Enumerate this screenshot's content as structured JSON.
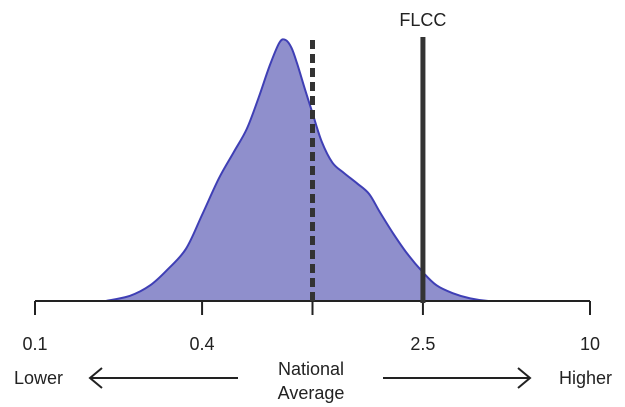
{
  "chart_data": {
    "type": "area",
    "scale": "log",
    "xlim": [
      0.1,
      10
    ],
    "ylim": [
      0,
      1
    ],
    "ticks": [
      {
        "value": 0.1,
        "label": "0.1"
      },
      {
        "value": 0.4,
        "label": "0.4"
      },
      {
        "value": 1.0,
        "label": ""
      },
      {
        "value": 2.5,
        "label": "2.5"
      },
      {
        "value": 10,
        "label": "10"
      }
    ],
    "density": {
      "x": [
        0.18,
        0.22,
        0.26,
        0.3,
        0.35,
        0.4,
        0.46,
        0.52,
        0.58,
        0.64,
        0.7,
        0.76,
        0.8,
        0.84,
        0.88,
        0.94,
        1.0,
        1.08,
        1.18,
        1.3,
        1.45,
        1.6,
        1.75,
        1.95,
        2.2,
        2.5,
        2.8,
        3.2,
        3.7,
        4.3,
        5.0
      ],
      "y": [
        0.0,
        0.02,
        0.06,
        0.12,
        0.2,
        0.33,
        0.47,
        0.57,
        0.66,
        0.78,
        0.9,
        0.99,
        1.0,
        0.97,
        0.91,
        0.81,
        0.72,
        0.61,
        0.53,
        0.49,
        0.45,
        0.41,
        0.34,
        0.26,
        0.18,
        0.11,
        0.06,
        0.03,
        0.01,
        0.0,
        0.0
      ]
    },
    "reference_lines": [
      {
        "value": 1.0,
        "style": "dashed",
        "label": ""
      },
      {
        "value": 2.5,
        "style": "solid",
        "label": "FLCC"
      }
    ],
    "colors": {
      "fill": "#8f8fcc",
      "stroke": "#3f3fb5",
      "axis": "#222222",
      "ref": "#333333"
    },
    "annotations": {
      "left": "Lower",
      "center_line1": "National",
      "center_line2": "Average",
      "right": "Higher"
    }
  }
}
